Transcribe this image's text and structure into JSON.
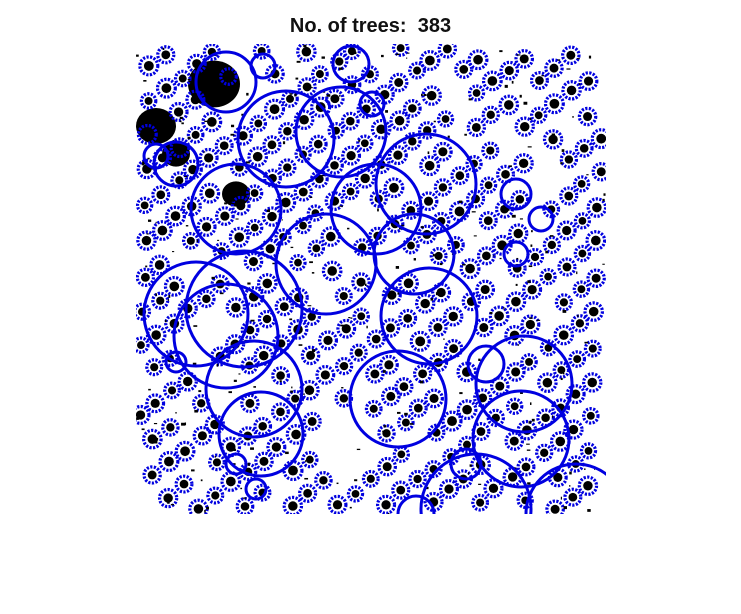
{
  "figure": {
    "title": "No. of trees:  383",
    "tree_count": 383
  },
  "colors": {
    "background": "#ffffff",
    "image_ink": "#000000",
    "circle_stroke": "#0000e0"
  }
}
